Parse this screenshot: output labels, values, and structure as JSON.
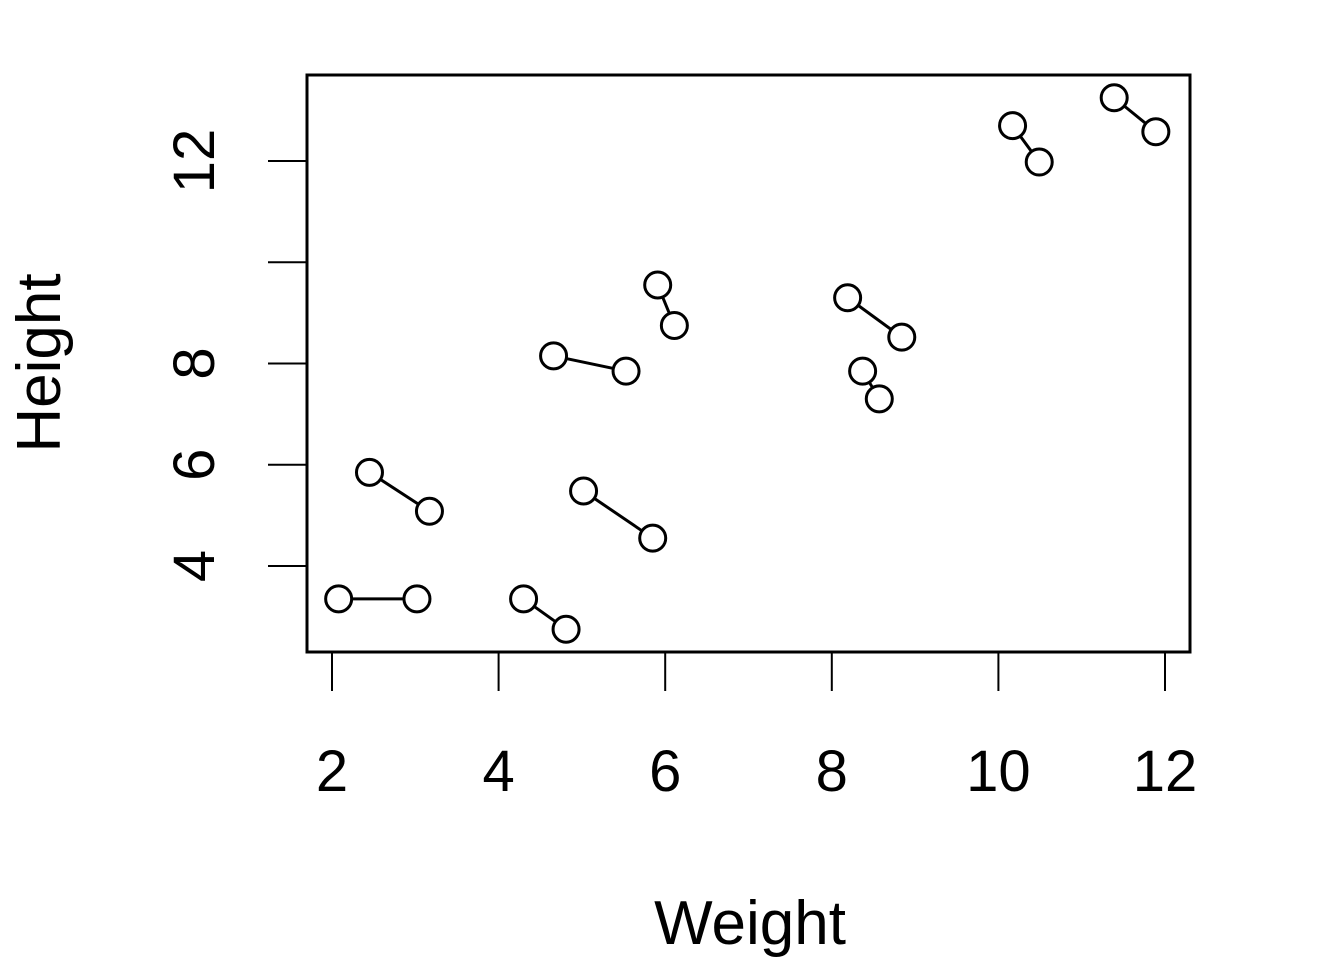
{
  "chart_data": {
    "type": "scatter",
    "title": "",
    "xlabel": "Weight",
    "ylabel": "Height",
    "xlim": [
      1.7,
      12.3
    ],
    "ylim": [
      2.3,
      13.7
    ],
    "x_ticks": [
      2,
      4,
      6,
      8,
      10,
      12
    ],
    "y_ticks": [
      4,
      6,
      8,
      10,
      12
    ],
    "x_tick_labels": [
      "2",
      "4",
      "6",
      "8",
      "10",
      "12"
    ],
    "y_tick_labels": [
      "4",
      "6",
      "8",
      "",
      "12"
    ],
    "grid": false,
    "marker": "open-circle",
    "segments": [
      {
        "from": {
          "x": 2.08,
          "y": 3.35
        },
        "to": {
          "x": 3.02,
          "y": 3.35
        }
      },
      {
        "from": {
          "x": 2.45,
          "y": 5.85
        },
        "to": {
          "x": 3.17,
          "y": 5.08
        }
      },
      {
        "from": {
          "x": 4.3,
          "y": 3.35
        },
        "to": {
          "x": 4.81,
          "y": 2.75
        }
      },
      {
        "from": {
          "x": 5.02,
          "y": 5.48
        },
        "to": {
          "x": 5.85,
          "y": 4.55
        }
      },
      {
        "from": {
          "x": 4.66,
          "y": 8.15
        },
        "to": {
          "x": 5.53,
          "y": 7.85
        }
      },
      {
        "from": {
          "x": 5.91,
          "y": 9.55
        },
        "to": {
          "x": 6.11,
          "y": 8.75
        }
      },
      {
        "from": {
          "x": 8.19,
          "y": 9.3
        },
        "to": {
          "x": 8.84,
          "y": 8.52
        }
      },
      {
        "from": {
          "x": 8.37,
          "y": 7.85
        },
        "to": {
          "x": 8.57,
          "y": 7.3
        }
      },
      {
        "from": {
          "x": 10.17,
          "y": 12.7
        },
        "to": {
          "x": 10.49,
          "y": 11.98
        }
      },
      {
        "from": {
          "x": 11.39,
          "y": 13.25
        },
        "to": {
          "x": 11.89,
          "y": 12.58
        }
      }
    ]
  }
}
